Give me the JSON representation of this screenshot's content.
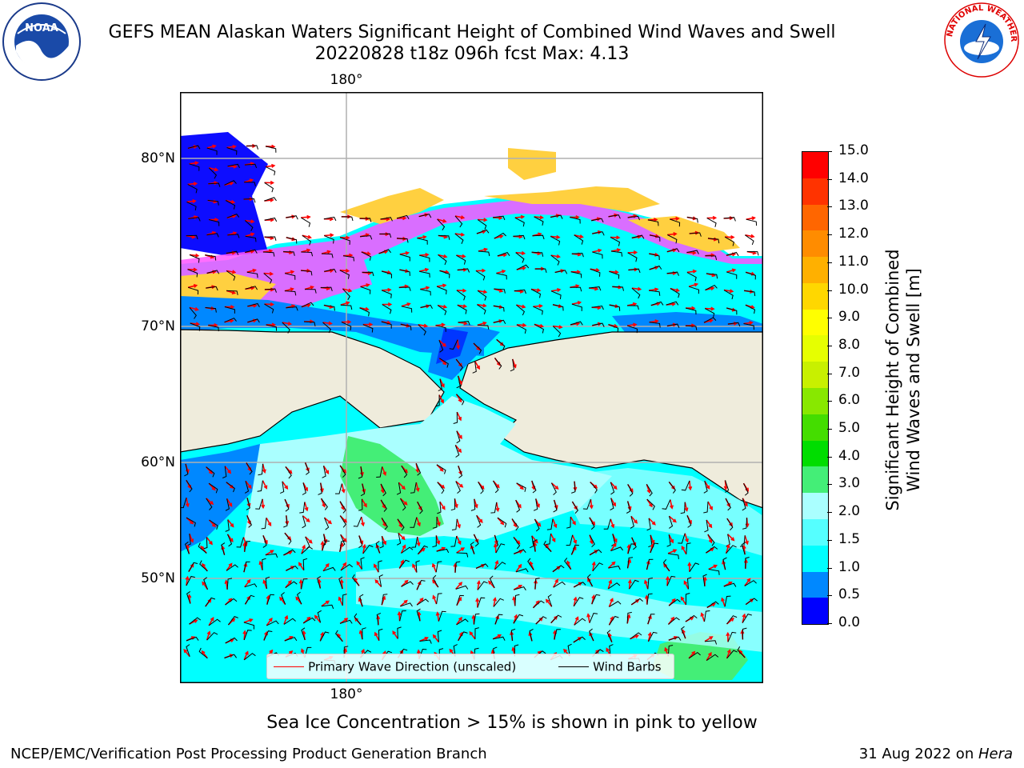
{
  "title": {
    "line1": "GEFS MEAN Alaskan Waters Significant Height of Combined Wind Waves and Swell",
    "line2": "20220828 t18z 096h fcst   Max: 4.13"
  },
  "logos": {
    "noaa_text": "NOAA",
    "nws_text": "NATIONAL WEATHER SERVICE"
  },
  "map": {
    "lon_label_top": "180°",
    "lon_label_bottom": "180°",
    "lat_labels": [
      "80°N",
      "70°N",
      "60°N",
      "50°N"
    ]
  },
  "legend": {
    "wave": "Primary Wave Direction (unscaled)",
    "wind": "Wind Barbs",
    "wave_color": "#ff0000",
    "wind_color": "#000000"
  },
  "colorbar": {
    "label_line1": "Significant Height of Combined",
    "label_line2": "Wind Waves and Swell [m]",
    "ticks": [
      "15.0",
      "14.0",
      "13.0",
      "12.0",
      "11.0",
      "10.0",
      "9.0",
      "8.0",
      "7.0",
      "6.0",
      "5.0",
      "4.0",
      "3.0",
      "2.0",
      "1.5",
      "1.0",
      "0.5",
      "0.0"
    ],
    "colors_top_to_bottom": [
      "#ff0000",
      "#ff3300",
      "#ff6600",
      "#ff8c00",
      "#ffb000",
      "#ffd700",
      "#ffff00",
      "#e6ff00",
      "#c8f000",
      "#88e800",
      "#44dd00",
      "#00dd00",
      "#44ee77",
      "#aaffff",
      "#55ffff",
      "#00ffff",
      "#0088ff",
      "#0000ff"
    ]
  },
  "note": "Sea Ice Concentration > 15% is shown in pink to yellow",
  "footer": {
    "left": "NCEP/EMC/Verification Post Processing Product Generation Branch",
    "right_date": "31 Aug 2022 on ",
    "right_host": "Hera"
  }
}
